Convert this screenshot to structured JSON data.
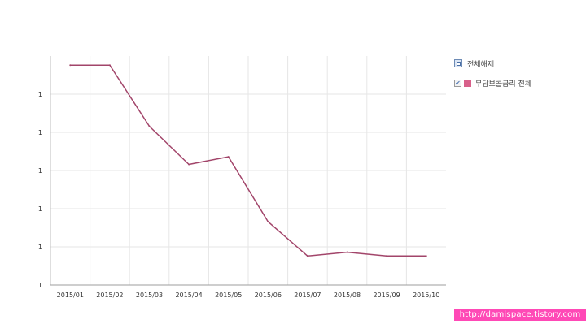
{
  "chart_data": {
    "type": "line",
    "categories": [
      "2015/01",
      "2015/02",
      "2015/03",
      "2015/04",
      "2015/05",
      "2015/06",
      "2015/07",
      "2015/08",
      "2015/09",
      "2015/10"
    ],
    "y_tick_labels": [
      "1",
      "1",
      "1",
      "1",
      "1",
      "1"
    ],
    "ylim": [
      0,
      6
    ],
    "series": [
      {
        "name": "무담보콜금리 전체",
        "color": "#a2456a",
        "values": [
          5.76,
          5.76,
          4.16,
          3.16,
          3.36,
          1.66,
          0.76,
          0.86,
          0.76,
          0.76
        ]
      }
    ],
    "grid": true,
    "legend_position": "right"
  },
  "legend": {
    "toggle_label": "전체해제",
    "series_label": "무담보콜금리 전체",
    "swatch_color": "#d8608a"
  },
  "watermark": "http://damispace.tistory.com"
}
